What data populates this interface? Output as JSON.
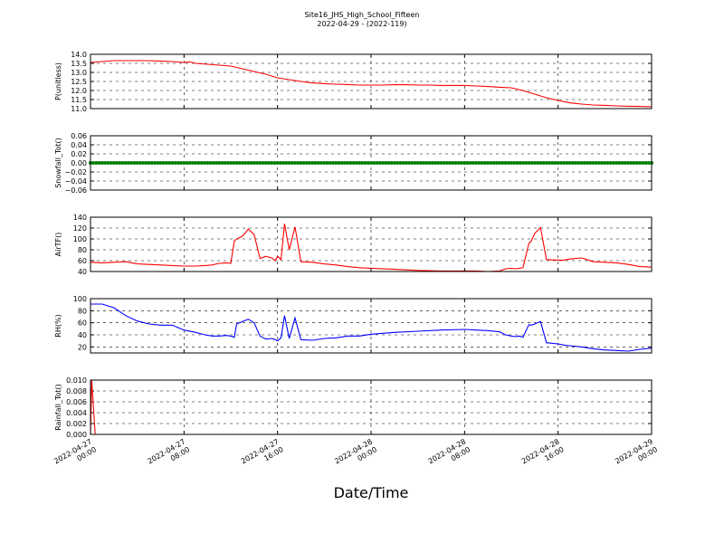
{
  "title": "Site16_JHS_High_School_Fifteen",
  "subtitle": "2022-04-29 - (2022-119)",
  "xlabel": "Date/Time",
  "x_ticks": [
    {
      "value": 0,
      "line1": "2022-04-27",
      "line2": "00:00"
    },
    {
      "value": 8,
      "line1": "2022-04-27",
      "line2": "08:00"
    },
    {
      "value": 16,
      "line1": "2022-04-27",
      "line2": "16:00"
    },
    {
      "value": 24,
      "line1": "2022-04-28",
      "line2": "00:00"
    },
    {
      "value": 32,
      "line1": "2022-04-28",
      "line2": "08:00"
    },
    {
      "value": 40,
      "line1": "2022-04-28",
      "line2": "16:00"
    },
    {
      "value": 48,
      "line1": "2022-04-29",
      "line2": "00:00"
    }
  ],
  "chart_data": [
    {
      "type": "line",
      "ylabel": "P(unitless)",
      "ylim": [
        11.0,
        14.0
      ],
      "yticks": [
        "11.0",
        "11.5",
        "12.0",
        "12.5",
        "13.0",
        "13.5",
        "14.0"
      ],
      "color": "#ff0000",
      "grid": true,
      "x": [
        0,
        1,
        2,
        3,
        4,
        5,
        6,
        7,
        8,
        8.5,
        9,
        10,
        11,
        12,
        13,
        14,
        15,
        16,
        17,
        18,
        19,
        20,
        21,
        22,
        23,
        24,
        25,
        26,
        27,
        28,
        29,
        30,
        31,
        32,
        33,
        34,
        35,
        36,
        37,
        38,
        39,
        40,
        41,
        42,
        43,
        44,
        45,
        46,
        47,
        48
      ],
      "y": [
        13.55,
        13.6,
        13.65,
        13.65,
        13.65,
        13.65,
        13.62,
        13.6,
        13.55,
        13.58,
        13.5,
        13.45,
        13.4,
        13.35,
        13.2,
        13.05,
        12.9,
        12.7,
        12.6,
        12.5,
        12.42,
        12.38,
        12.35,
        12.33,
        12.3,
        12.3,
        12.3,
        12.32,
        12.32,
        12.3,
        12.3,
        12.28,
        12.28,
        12.28,
        12.25,
        12.22,
        12.18,
        12.15,
        12.0,
        11.8,
        11.6,
        11.45,
        11.32,
        11.25,
        11.2,
        11.18,
        11.15,
        11.13,
        11.12,
        11.1
      ]
    },
    {
      "type": "line",
      "ylabel": "Snowfall_Tot()",
      "ylim": [
        -0.06,
        0.06
      ],
      "yticks": [
        "−0.06",
        "−0.04",
        "−0.02",
        "0.00",
        "0.02",
        "0.04",
        "0.06"
      ],
      "color": "#008000",
      "grid": true,
      "marker": "dot",
      "x": [
        0,
        48
      ],
      "y": [
        0,
        0
      ]
    },
    {
      "type": "line",
      "ylabel": "AirTF()",
      "ylim": [
        40,
        140
      ],
      "yticks": [
        "40",
        "60",
        "80",
        "100",
        "120",
        "140"
      ],
      "color": "#ff0000",
      "grid": true,
      "x": [
        0,
        1,
        2,
        3,
        4,
        5,
        6,
        7,
        8,
        9,
        9.8,
        10.4,
        11,
        11.6,
        12,
        12.3,
        12.5,
        13,
        13.5,
        14,
        14.5,
        15,
        15.5,
        15.8,
        16,
        16.3,
        16.6,
        17,
        17.5,
        18,
        19,
        20,
        21,
        22,
        23,
        24,
        26,
        28,
        30,
        32,
        33,
        34,
        35,
        35.5,
        36,
        36.3,
        36.7,
        37,
        37.5,
        37.7,
        38,
        38.5,
        39,
        40,
        40.5,
        41,
        42,
        43,
        44,
        45,
        46,
        47,
        48
      ],
      "y": [
        57,
        56,
        57,
        58,
        54,
        53,
        52,
        51,
        50,
        50,
        51,
        52,
        55,
        56,
        55,
        96,
        100,
        105,
        118,
        108,
        64,
        68,
        65,
        60,
        68,
        62,
        128,
        80,
        122,
        58,
        57,
        54,
        52,
        49,
        47,
        46,
        44,
        42,
        41,
        41,
        41,
        40,
        41,
        45,
        46,
        45,
        46,
        47,
        92,
        96,
        110,
        121,
        62,
        61,
        61,
        63,
        65,
        58,
        57,
        56,
        53,
        49,
        48
      ]
    },
    {
      "type": "line",
      "ylabel": "RH(%)",
      "ylim": [
        10,
        100
      ],
      "yticks": [
        "20",
        "40",
        "60",
        "80",
        "100"
      ],
      "color": "#0000ff",
      "grid": true,
      "x": [
        0,
        1,
        2,
        3,
        4,
        5,
        6,
        7,
        8,
        9,
        9.8,
        10.4,
        11,
        11.6,
        12,
        12.3,
        12.5,
        13,
        13.5,
        14,
        14.5,
        15,
        15.5,
        15.8,
        16,
        16.3,
        16.6,
        17,
        17.5,
        18,
        19,
        20,
        21,
        22,
        23,
        24,
        26,
        28,
        30,
        32,
        33,
        34,
        35,
        35.5,
        36,
        36.3,
        36.7,
        37,
        37.5,
        37.7,
        38,
        38.5,
        39,
        40,
        40.5,
        41,
        42,
        43,
        44,
        45,
        46,
        47,
        48
      ],
      "y": [
        91,
        91,
        85,
        72,
        63,
        58,
        56,
        56,
        48,
        44,
        40,
        38,
        38,
        39,
        38,
        36,
        58,
        62,
        66,
        60,
        38,
        33,
        34,
        32,
        30,
        35,
        72,
        34,
        68,
        32,
        31,
        34,
        35,
        38,
        38,
        41,
        44,
        46,
        48,
        49,
        48,
        47,
        45,
        40,
        38,
        37,
        38,
        36,
        57,
        56,
        58,
        62,
        27,
        25,
        23,
        22,
        20,
        17,
        15,
        14,
        13,
        16,
        18
      ]
    },
    {
      "type": "line",
      "ylabel": "Rainfall_Tot()",
      "ylim": [
        0.0,
        0.01
      ],
      "yticks": [
        "0.000",
        "0.002",
        "0.004",
        "0.006",
        "0.008",
        "0.010"
      ],
      "color": "#ff0000",
      "grid": true,
      "x": [
        0,
        0.1,
        0.4,
        0.5,
        48
      ],
      "y": [
        0,
        0.01,
        0.0,
        0,
        0
      ]
    }
  ]
}
